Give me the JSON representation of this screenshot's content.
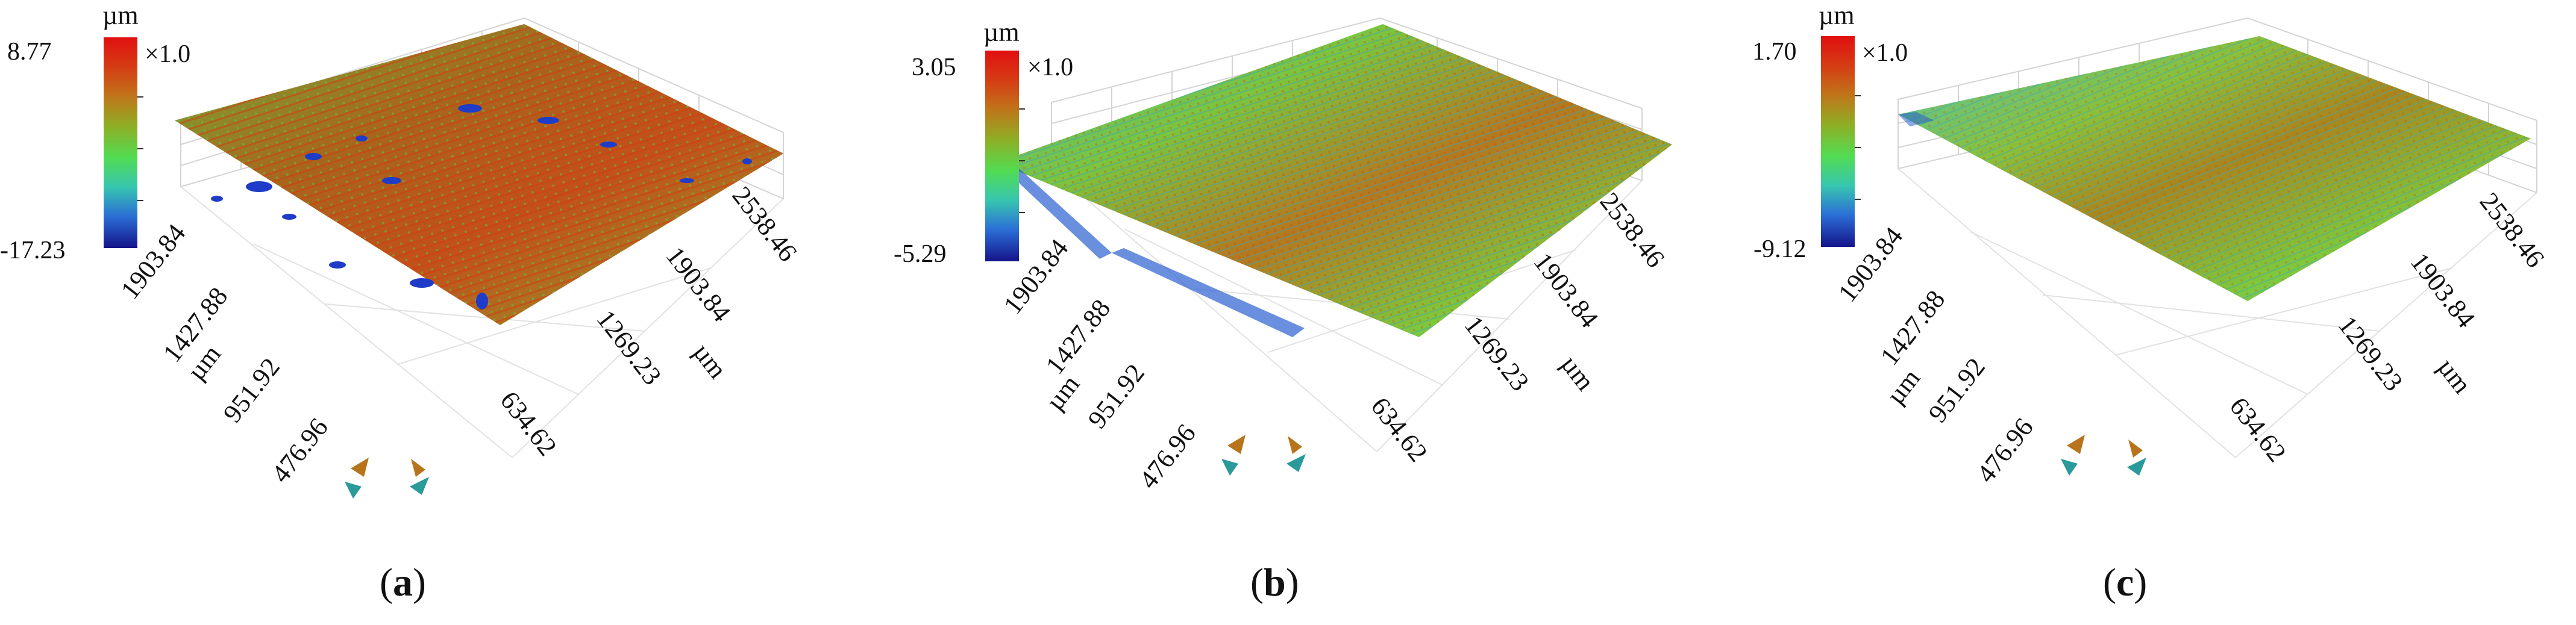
{
  "panels": [
    {
      "id": "a",
      "caption_open": "(",
      "caption_letter": "a",
      "caption_close": ")",
      "unit_label": "µm",
      "colorbar_max": "8.77",
      "colorbar_min": "-17.23",
      "multiplier": "×1.0",
      "left_axis_ticks": [
        "1903.84",
        "1427.88",
        "951.92",
        "476.96"
      ],
      "left_axis_unit": "µm",
      "right_axis_ticks": [
        "2538.46",
        "1903.84",
        "1269.23",
        "634.62"
      ],
      "right_axis_unit": "µm"
    },
    {
      "id": "b",
      "caption_open": "(",
      "caption_letter": "b",
      "caption_close": ")",
      "unit_label": "µm",
      "colorbar_max": "3.05",
      "colorbar_min": "-5.29",
      "multiplier": "×1.0",
      "left_axis_ticks": [
        "1903.84",
        "1427.88",
        "951.92",
        "476.96"
      ],
      "left_axis_unit": "µm",
      "right_axis_ticks": [
        "2538.46",
        "1903.84",
        "1269.23",
        "634.62"
      ],
      "right_axis_unit": "µm"
    },
    {
      "id": "c",
      "caption_open": "(",
      "caption_letter": "c",
      "caption_close": ")",
      "unit_label": "µm",
      "colorbar_max": "1.70",
      "colorbar_min": "-9.12",
      "multiplier": "×1.0",
      "left_axis_ticks": [
        "1903.84",
        "1427.88",
        "951.92",
        "476.96"
      ],
      "left_axis_unit": "µm",
      "right_axis_ticks": [
        "2538.46",
        "1903.84",
        "1269.23",
        "634.62"
      ],
      "right_axis_unit": "µm"
    }
  ],
  "colors": {
    "surface_red": "#c83214",
    "surface_olive": "#8a9a28",
    "surface_green": "#58c84a",
    "surface_cyan": "#3cc0b8",
    "surface_blue": "#1e46c8"
  }
}
